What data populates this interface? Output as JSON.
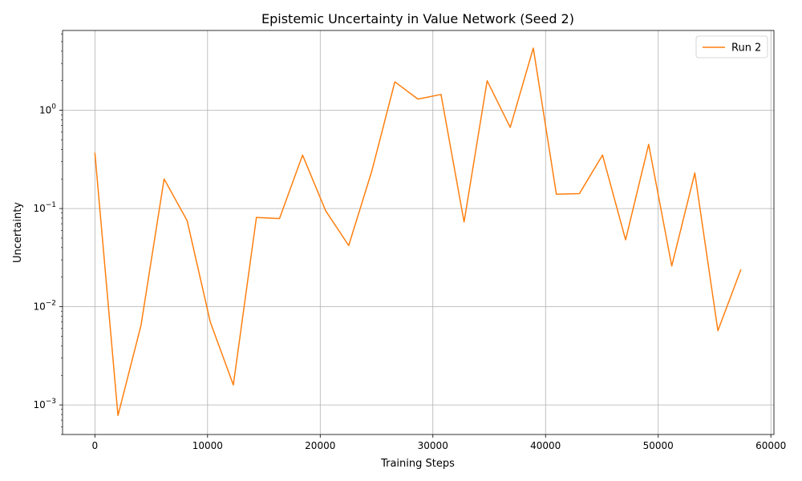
{
  "chart_data": {
    "type": "line",
    "title": "Epistemic Uncertainty in Value Network (Seed 2)",
    "xlabel": "Training Steps",
    "ylabel": "Uncertainty",
    "yscale": "log",
    "xlim": [
      -2870,
      60270
    ],
    "ylim": [
      0.0005,
      6.5
    ],
    "xticks": [
      0,
      10000,
      20000,
      30000,
      40000,
      50000,
      60000
    ],
    "xtick_labels": [
      "0",
      "10000",
      "20000",
      "30000",
      "40000",
      "50000",
      "60000"
    ],
    "yticks": [
      0.001,
      0.01,
      0.1,
      1
    ],
    "ytick_labels": [
      {
        "base": "10",
        "exp": "−3"
      },
      {
        "base": "10",
        "exp": "−2"
      },
      {
        "base": "10",
        "exp": "−1"
      },
      {
        "base": "10",
        "exp": "0"
      }
    ],
    "grid": true,
    "legend_position": "top-right",
    "series": [
      {
        "name": "Run 2",
        "color": "#ff7f0e",
        "x": [
          0,
          2048,
          4096,
          6144,
          8192,
          10240,
          12288,
          14336,
          16384,
          18432,
          20480,
          22528,
          24576,
          26624,
          28672,
          30720,
          32768,
          34816,
          36864,
          38912,
          40960,
          43008,
          45056,
          47104,
          49152,
          51200,
          53248,
          55296,
          57344
        ],
        "y": [
          0.37,
          0.00078,
          0.0065,
          0.2,
          0.075,
          0.007,
          0.0016,
          0.081,
          0.079,
          0.35,
          0.095,
          0.042,
          0.24,
          1.95,
          1.3,
          1.45,
          0.073,
          2.0,
          0.67,
          4.3,
          0.14,
          0.142,
          0.35,
          0.048,
          0.45,
          0.026,
          0.23,
          0.0057,
          0.024
        ]
      }
    ]
  }
}
